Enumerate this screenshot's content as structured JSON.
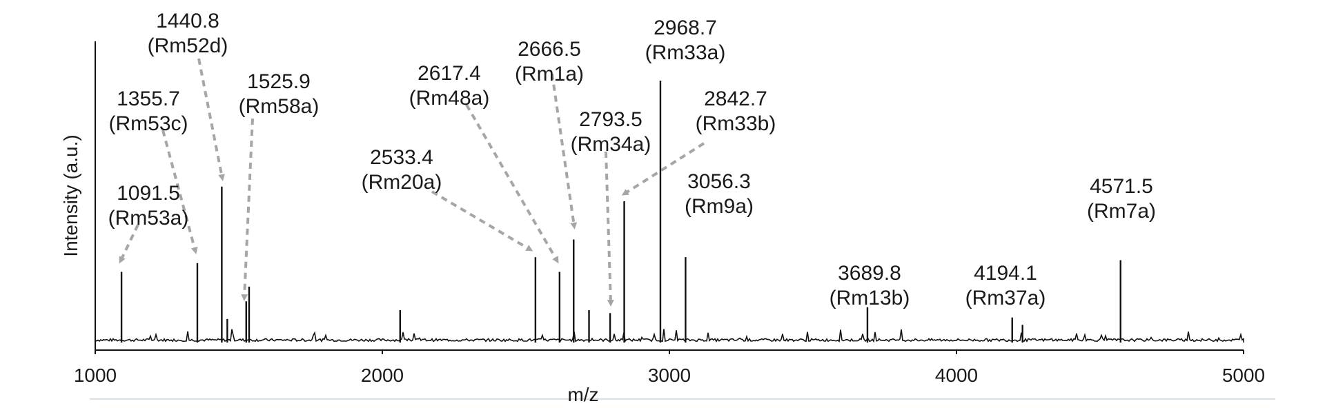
{
  "chart_data": {
    "type": "line",
    "xlabel": "m/z",
    "ylabel": "Intensity (a.u.)",
    "xlim": [
      1000,
      5000
    ],
    "ylim": [
      0,
      100
    ],
    "x_ticks": [
      "1000",
      "2000",
      "3000",
      "4000",
      "5000"
    ],
    "grid": false,
    "legend": "none",
    "colors": {
      "trace": "#111111",
      "arrow": "#a6a6a6",
      "axis": "#111111",
      "baseline_rule": "#c8d6de"
    },
    "peaks": [
      {
        "mz": 1091.5,
        "intensity": 24,
        "mass_label": "1091.5",
        "id_label": "(Rm53a)",
        "labeled": true
      },
      {
        "mz": 1355.7,
        "intensity": 27,
        "mass_label": "1355.7",
        "id_label": "(Rm53c)",
        "labeled": true
      },
      {
        "mz": 1440.8,
        "intensity": 53,
        "mass_label": "1440.8",
        "id_label": "(Rm52d)",
        "labeled": true
      },
      {
        "mz": 1525.9,
        "intensity": 14,
        "mass_label": "1525.9",
        "id_label": "(Rm58a)",
        "labeled": true
      },
      {
        "mz": 1536.0,
        "intensity": 19,
        "labeled": false
      },
      {
        "mz": 1460.0,
        "intensity": 8,
        "labeled": false
      },
      {
        "mz": 2062.0,
        "intensity": 11,
        "labeled": false
      },
      {
        "mz": 2533.4,
        "intensity": 29,
        "mass_label": "2533.4",
        "id_label": "(Rm20a)",
        "labeled": true
      },
      {
        "mz": 2617.4,
        "intensity": 24,
        "mass_label": "2617.4",
        "id_label": "(Rm48a)",
        "labeled": true
      },
      {
        "mz": 2666.5,
        "intensity": 35,
        "mass_label": "2666.5",
        "id_label": "(Rm1a)",
        "labeled": true
      },
      {
        "mz": 2720.0,
        "intensity": 11,
        "labeled": false
      },
      {
        "mz": 2793.5,
        "intensity": 10,
        "mass_label": "2793.5",
        "id_label": "(Rm34a)",
        "labeled": true
      },
      {
        "mz": 2842.7,
        "intensity": 48,
        "mass_label": "2842.7",
        "id_label": "(Rm33b)",
        "labeled": true
      },
      {
        "mz": 2968.7,
        "intensity": 89,
        "mass_label": "2968.7",
        "id_label": "(Rm33a)",
        "labeled": true
      },
      {
        "mz": 3056.3,
        "intensity": 29,
        "mass_label": "3056.3",
        "id_label": "(Rm9a)",
        "labeled": true
      },
      {
        "mz": 3689.8,
        "intensity": 12,
        "mass_label": "3689.8",
        "id_label": "(Rm13b)",
        "labeled": true
      },
      {
        "mz": 4194.1,
        "intensity": 8.5,
        "mass_label": "4194.1",
        "id_label": "(Rm37a)",
        "labeled": true
      },
      {
        "mz": 4230.0,
        "intensity": 6,
        "labeled": false
      },
      {
        "mz": 4571.5,
        "intensity": 28,
        "mass_label": "4571.5",
        "id_label": "(Rm7a)",
        "labeled": true
      }
    ]
  }
}
